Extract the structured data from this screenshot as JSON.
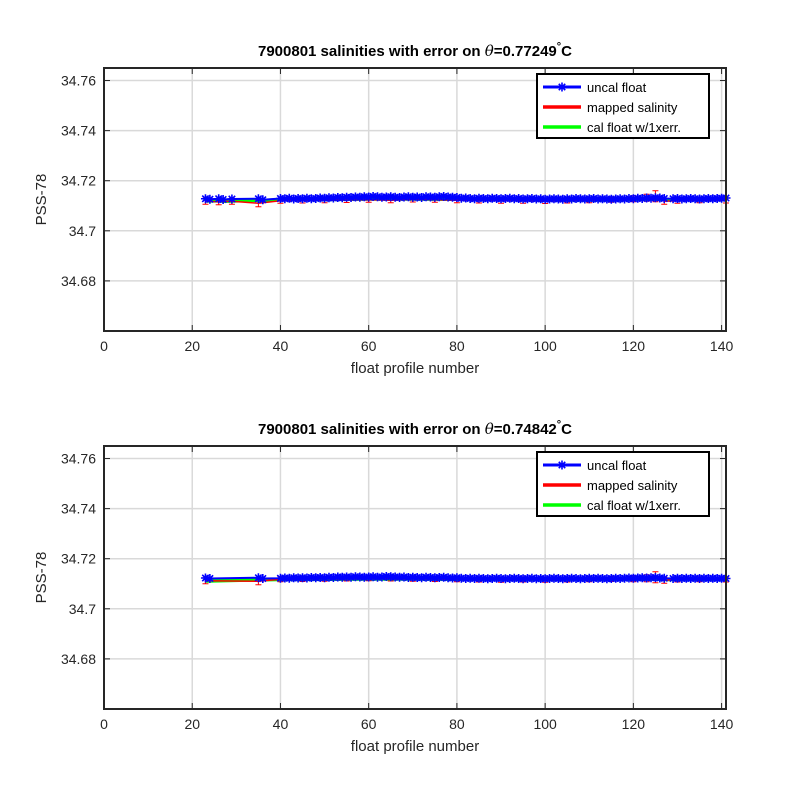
{
  "colors": {
    "uncal": "#0000ff",
    "mapped": "#ff0000",
    "cal": "#00ff00",
    "grid": "#d9d9d9",
    "axis": "#262626"
  },
  "chart_data": [
    {
      "type": "line",
      "title_prefix": "7900801 salinities with error on ",
      "title_theta": "θ",
      "title_value": "=0.77249",
      "title_degree": "°",
      "title_unit": "C",
      "xlabel": "float profile number",
      "ylabel": "PSS-78",
      "xlim": [
        0,
        141
      ],
      "ylim": [
        34.66,
        34.765
      ],
      "xticks": [
        0,
        20,
        40,
        60,
        80,
        100,
        120,
        140
      ],
      "xtick_labels": [
        "0",
        "20",
        "40",
        "60",
        "80",
        "100",
        "120",
        "140"
      ],
      "yticks": [
        34.68,
        34.7,
        34.72,
        34.74,
        34.76
      ],
      "ytick_labels": [
        "34.68",
        "34.7",
        "34.72",
        "34.74",
        "34.76"
      ],
      "grid": true,
      "legend_position": "top-right",
      "legend": [
        "uncal float",
        "mapped salinity",
        "cal float w/1xerr."
      ],
      "series": [
        {
          "name": "uncal float",
          "x": [
            23,
            24,
            26,
            27,
            29,
            35,
            36,
            40,
            41,
            42,
            43,
            44,
            45,
            46,
            47,
            48,
            49,
            50,
            51,
            52,
            53,
            54,
            55,
            56,
            57,
            58,
            59,
            60,
            61,
            62,
            63,
            64,
            65,
            66,
            67,
            68,
            69,
            70,
            71,
            72,
            73,
            74,
            75,
            76,
            77,
            78,
            79,
            80,
            81,
            82,
            83,
            84,
            85,
            86,
            87,
            88,
            89,
            90,
            91,
            92,
            93,
            94,
            95,
            96,
            97,
            98,
            99,
            100,
            101,
            102,
            103,
            104,
            105,
            106,
            107,
            108,
            109,
            110,
            111,
            112,
            113,
            114,
            115,
            116,
            117,
            118,
            119,
            120,
            121,
            122,
            123,
            124,
            125,
            126,
            127,
            129,
            130,
            131,
            132,
            133,
            134,
            135,
            136,
            137,
            138,
            139,
            140,
            141
          ],
          "y": [
            34.7128,
            34.7126,
            34.7128,
            34.7125,
            34.7127,
            34.7128,
            34.7124,
            34.7129,
            34.7128,
            34.713,
            34.7127,
            34.7129,
            34.7128,
            34.713,
            34.7128,
            34.7129,
            34.7131,
            34.713,
            34.7132,
            34.7131,
            34.7133,
            34.7132,
            34.7134,
            34.7133,
            34.7135,
            34.7134,
            34.7136,
            34.7135,
            34.7137,
            34.7136,
            34.7134,
            34.7135,
            34.7136,
            34.7134,
            34.7133,
            34.7135,
            34.7136,
            34.7134,
            34.7135,
            34.7133,
            34.7136,
            34.7135,
            34.7134,
            34.7136,
            34.7137,
            34.7135,
            34.7134,
            34.7133,
            34.713,
            34.7131,
            34.7129,
            34.7128,
            34.713,
            34.7129,
            34.7128,
            34.713,
            34.7129,
            34.7128,
            34.7129,
            34.713,
            34.7128,
            34.7129,
            34.7127,
            34.7128,
            34.7129,
            34.7127,
            34.7128,
            34.7126,
            34.7127,
            34.7128,
            34.7127,
            34.7126,
            34.7128,
            34.7127,
            34.7129,
            34.7128,
            34.7127,
            34.7128,
            34.7129,
            34.7127,
            34.7128,
            34.7127,
            34.7126,
            34.7127,
            34.7128,
            34.7127,
            34.7129,
            34.7128,
            34.713,
            34.7129,
            34.7131,
            34.713,
            34.7132,
            34.7131,
            34.7129,
            34.7128,
            34.7129,
            34.7127,
            34.7128,
            34.7129,
            34.7128,
            34.7127,
            34.7128,
            34.7129,
            34.7128,
            34.7129,
            34.713,
            34.7131
          ]
        },
        {
          "name": "mapped salinity",
          "x": [
            23,
            26,
            29,
            35,
            40,
            45,
            50,
            55,
            60,
            65,
            70,
            75,
            80,
            85,
            90,
            95,
            100,
            105,
            110,
            115,
            120,
            123,
            125,
            127,
            130,
            135,
            141
          ],
          "y": [
            34.7118,
            34.7116,
            34.7118,
            34.711,
            34.712,
            34.7121,
            34.7122,
            34.7123,
            34.7124,
            34.7122,
            34.7125,
            34.7124,
            34.7122,
            34.7121,
            34.712,
            34.712,
            34.7119,
            34.7121,
            34.7122,
            34.7124,
            34.7128,
            34.7132,
            34.7138,
            34.7118,
            34.712,
            34.7122,
            34.7121
          ],
          "err": [
            0.0012,
            0.0012,
            0.0012,
            0.0014,
            0.001,
            0.001,
            0.001,
            0.001,
            0.001,
            0.001,
            0.001,
            0.001,
            0.001,
            0.001,
            0.001,
            0.001,
            0.001,
            0.001,
            0.001,
            0.001,
            0.0012,
            0.0014,
            0.0022,
            0.0012,
            0.001,
            0.001,
            0.001
          ]
        },
        {
          "name": "cal float w/1xerr.",
          "x": [
            23,
            24,
            26,
            27,
            29,
            35,
            36,
            40,
            50,
            60,
            70,
            80,
            90,
            100,
            110,
            120,
            125,
            127,
            130,
            141
          ],
          "y": [
            34.712,
            34.7119,
            34.712,
            34.7118,
            34.7119,
            34.7122,
            34.7121,
            34.7124,
            34.7125,
            34.7127,
            34.7127,
            34.7126,
            34.7124,
            34.7123,
            34.7123,
            34.7125,
            34.7127,
            34.7124,
            34.7124,
            34.7125
          ]
        }
      ]
    },
    {
      "type": "line",
      "title_prefix": "7900801 salinities with error on ",
      "title_theta": "θ",
      "title_value": "=0.74842",
      "title_degree": "°",
      "title_unit": "C",
      "xlabel": "float profile number",
      "ylabel": "PSS-78",
      "xlim": [
        0,
        141
      ],
      "ylim": [
        34.66,
        34.765
      ],
      "xticks": [
        0,
        20,
        40,
        60,
        80,
        100,
        120,
        140
      ],
      "xtick_labels": [
        "0",
        "20",
        "40",
        "60",
        "80",
        "100",
        "120",
        "140"
      ],
      "yticks": [
        34.68,
        34.7,
        34.72,
        34.74,
        34.76
      ],
      "ytick_labels": [
        "34.68",
        "34.7",
        "34.72",
        "34.74",
        "34.76"
      ],
      "grid": true,
      "legend_position": "top-right",
      "legend": [
        "uncal float",
        "mapped salinity",
        "cal float w/1xerr."
      ],
      "series": [
        {
          "name": "uncal float",
          "x": [
            23,
            24,
            35,
            36,
            40,
            41,
            42,
            43,
            44,
            45,
            46,
            47,
            48,
            49,
            50,
            51,
            52,
            53,
            54,
            55,
            56,
            57,
            58,
            59,
            60,
            61,
            62,
            63,
            64,
            65,
            66,
            67,
            68,
            69,
            70,
            71,
            72,
            73,
            74,
            75,
            76,
            77,
            78,
            79,
            80,
            81,
            82,
            83,
            84,
            85,
            86,
            87,
            88,
            89,
            90,
            91,
            92,
            93,
            94,
            95,
            96,
            97,
            98,
            99,
            100,
            101,
            102,
            103,
            104,
            105,
            106,
            107,
            108,
            109,
            110,
            111,
            112,
            113,
            114,
            115,
            116,
            117,
            118,
            119,
            120,
            121,
            122,
            123,
            124,
            125,
            126,
            127,
            129,
            130,
            131,
            132,
            133,
            134,
            135,
            136,
            137,
            138,
            139,
            140,
            141
          ],
          "y": [
            34.7123,
            34.7121,
            34.7124,
            34.7121,
            34.7122,
            34.7123,
            34.7122,
            34.7124,
            34.7123,
            34.7124,
            34.7123,
            34.7125,
            34.7124,
            34.7125,
            34.7124,
            34.7126,
            34.7125,
            34.7127,
            34.7126,
            34.7127,
            34.7126,
            34.7128,
            34.7127,
            34.7126,
            34.7127,
            34.7128,
            34.7126,
            34.7127,
            34.7129,
            34.7128,
            34.7127,
            34.7126,
            34.7127,
            34.7125,
            34.7126,
            34.7125,
            34.7124,
            34.7126,
            34.7125,
            34.7124,
            34.7125,
            34.7126,
            34.7124,
            34.7123,
            34.7124,
            34.7122,
            34.7121,
            34.7122,
            34.7121,
            34.7122,
            34.7121,
            34.712,
            34.7121,
            34.7122,
            34.7121,
            34.712,
            34.7121,
            34.7122,
            34.7121,
            34.712,
            34.7121,
            34.7122,
            34.712,
            34.7121,
            34.712,
            34.7121,
            34.7122,
            34.7121,
            34.712,
            34.7121,
            34.7122,
            34.7121,
            34.712,
            34.7121,
            34.7122,
            34.7121,
            34.7122,
            34.7121,
            34.712,
            34.7121,
            34.7122,
            34.7121,
            34.7122,
            34.7123,
            34.7122,
            34.7123,
            34.7124,
            34.7123,
            34.7124,
            34.7125,
            34.7123,
            34.7122,
            34.7121,
            34.7122,
            34.7121,
            34.7122,
            34.7121,
            34.7122,
            34.7121,
            34.7122,
            34.7121,
            34.7122,
            34.7121,
            34.7122,
            34.7121
          ]
        },
        {
          "name": "mapped salinity",
          "x": [
            23,
            35,
            40,
            45,
            50,
            55,
            60,
            65,
            70,
            75,
            80,
            85,
            90,
            95,
            100,
            105,
            110,
            115,
            120,
            123,
            125,
            127,
            130,
            135,
            141
          ],
          "y": [
            34.7112,
            34.711,
            34.7118,
            34.7119,
            34.712,
            34.7121,
            34.7122,
            34.7121,
            34.712,
            34.7119,
            34.7118,
            34.7117,
            34.7116,
            34.7117,
            34.7116,
            34.7117,
            34.7118,
            34.7119,
            34.712,
            34.7122,
            34.7126,
            34.7114,
            34.7117,
            34.7118,
            34.7117
          ],
          "err": [
            0.0012,
            0.0014,
            0.001,
            0.001,
            0.001,
            0.001,
            0.001,
            0.001,
            0.001,
            0.001,
            0.001,
            0.001,
            0.001,
            0.001,
            0.001,
            0.001,
            0.001,
            0.001,
            0.0012,
            0.0014,
            0.0022,
            0.0012,
            0.001,
            0.001,
            0.001
          ]
        },
        {
          "name": "cal float w/1xerr.",
          "x": [
            23,
            24,
            35,
            36,
            40,
            50,
            60,
            70,
            80,
            90,
            100,
            110,
            120,
            125,
            127,
            130,
            141
          ],
          "y": [
            34.7111,
            34.7111,
            34.7116,
            34.7116,
            34.7117,
            34.7118,
            34.7119,
            34.7119,
            34.7118,
            34.7117,
            34.7117,
            34.7117,
            34.7118,
            34.7119,
            34.7117,
            34.7117,
            34.7117
          ]
        }
      ]
    }
  ]
}
